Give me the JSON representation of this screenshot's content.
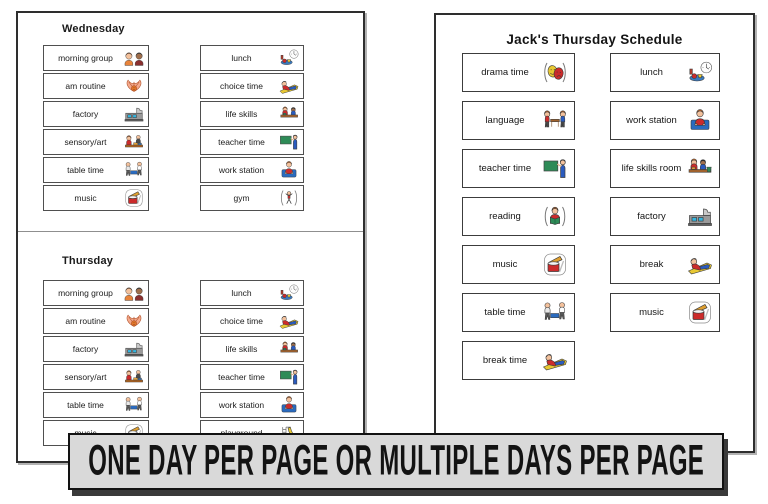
{
  "colors": {
    "banner_background": "#d9d9d9",
    "banner_border": "#121212",
    "banner_shadow": "#3a3a3a",
    "page_border": "#2e2e2e",
    "cell_border": "#4f4f4f"
  },
  "left_page": {
    "sections": [
      {
        "title": "Wednesday",
        "columns": [
          {
            "rows": [
              {
                "label": "morning group",
                "icon": "morning-group"
              },
              {
                "label": "am routine",
                "icon": "am-routine"
              },
              {
                "label": "factory",
                "icon": "factory"
              },
              {
                "label": "sensory/art",
                "icon": "sensory-art"
              },
              {
                "label": "table time",
                "icon": "table-time"
              },
              {
                "label": "music",
                "icon": "music"
              }
            ]
          },
          {
            "rows": [
              {
                "label": "lunch",
                "icon": "lunch"
              },
              {
                "label": "choice time",
                "icon": "choice-time"
              },
              {
                "label": "life skills",
                "icon": "life-skills"
              },
              {
                "label": "teacher time",
                "icon": "teacher-time"
              },
              {
                "label": "work station",
                "icon": "work-station"
              },
              {
                "label": "gym",
                "icon": "gym"
              }
            ]
          }
        ]
      },
      {
        "title": "Thursday",
        "columns": [
          {
            "rows": [
              {
                "label": "morning group",
                "icon": "morning-group"
              },
              {
                "label": "am routine",
                "icon": "am-routine"
              },
              {
                "label": "factory",
                "icon": "factory"
              },
              {
                "label": "sensory/art",
                "icon": "sensory-art"
              },
              {
                "label": "table time",
                "icon": "table-time"
              },
              {
                "label": "music",
                "icon": "music"
              }
            ]
          },
          {
            "rows": [
              {
                "label": "lunch",
                "icon": "lunch"
              },
              {
                "label": "choice time",
                "icon": "choice-time"
              },
              {
                "label": "life skills",
                "icon": "life-skills"
              },
              {
                "label": "teacher time",
                "icon": "teacher-time"
              },
              {
                "label": "work station",
                "icon": "work-station"
              },
              {
                "label": "playground",
                "icon": "playground"
              }
            ]
          }
        ]
      }
    ]
  },
  "right_page": {
    "title": "Jack's Thursday Schedule",
    "columns": [
      {
        "rows": [
          {
            "label": "drama time",
            "icon": "drama-time"
          },
          {
            "label": "language",
            "icon": "language"
          },
          {
            "label": "teacher time",
            "icon": "teacher-time"
          },
          {
            "label": "reading",
            "icon": "reading"
          },
          {
            "label": "music",
            "icon": "music"
          },
          {
            "label": "table time",
            "icon": "table-time"
          },
          {
            "label": "break time",
            "icon": "break-time"
          }
        ]
      },
      {
        "rows": [
          {
            "label": "lunch",
            "icon": "lunch"
          },
          {
            "label": "work station",
            "icon": "work-station"
          },
          {
            "label": "life skills room",
            "icon": "life-skills-room"
          },
          {
            "label": "factory",
            "icon": "factory"
          },
          {
            "label": "break",
            "icon": "break"
          },
          {
            "label": "music",
            "icon": "music"
          }
        ]
      }
    ]
  },
  "banner": {
    "label": "ONE DAY PER PAGE OR MULTIPLE DAYS PER PAGE"
  }
}
